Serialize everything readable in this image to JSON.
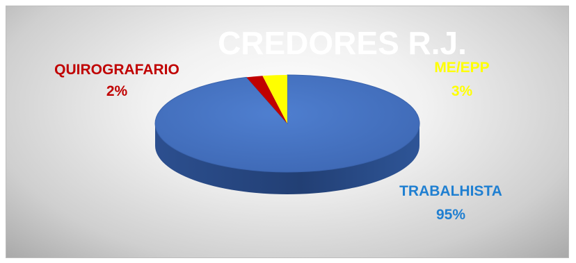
{
  "chart_data": {
    "type": "pie",
    "title": "CREDORES R.J.",
    "slices": [
      {
        "name": "TRABALHISTA",
        "value": 95,
        "label": "95%",
        "color": "#4472C4",
        "label_color": "#1F7FD1"
      },
      {
        "name": "QUIROGRAFARIO",
        "value": 2,
        "label": "2%",
        "color": "#C00000",
        "label_color": "#C00000"
      },
      {
        "name": "ME/EPP",
        "value": 3,
        "label": "3%",
        "color": "#FFFF00",
        "label_color": "#FFFF00"
      }
    ],
    "style": "3d"
  }
}
